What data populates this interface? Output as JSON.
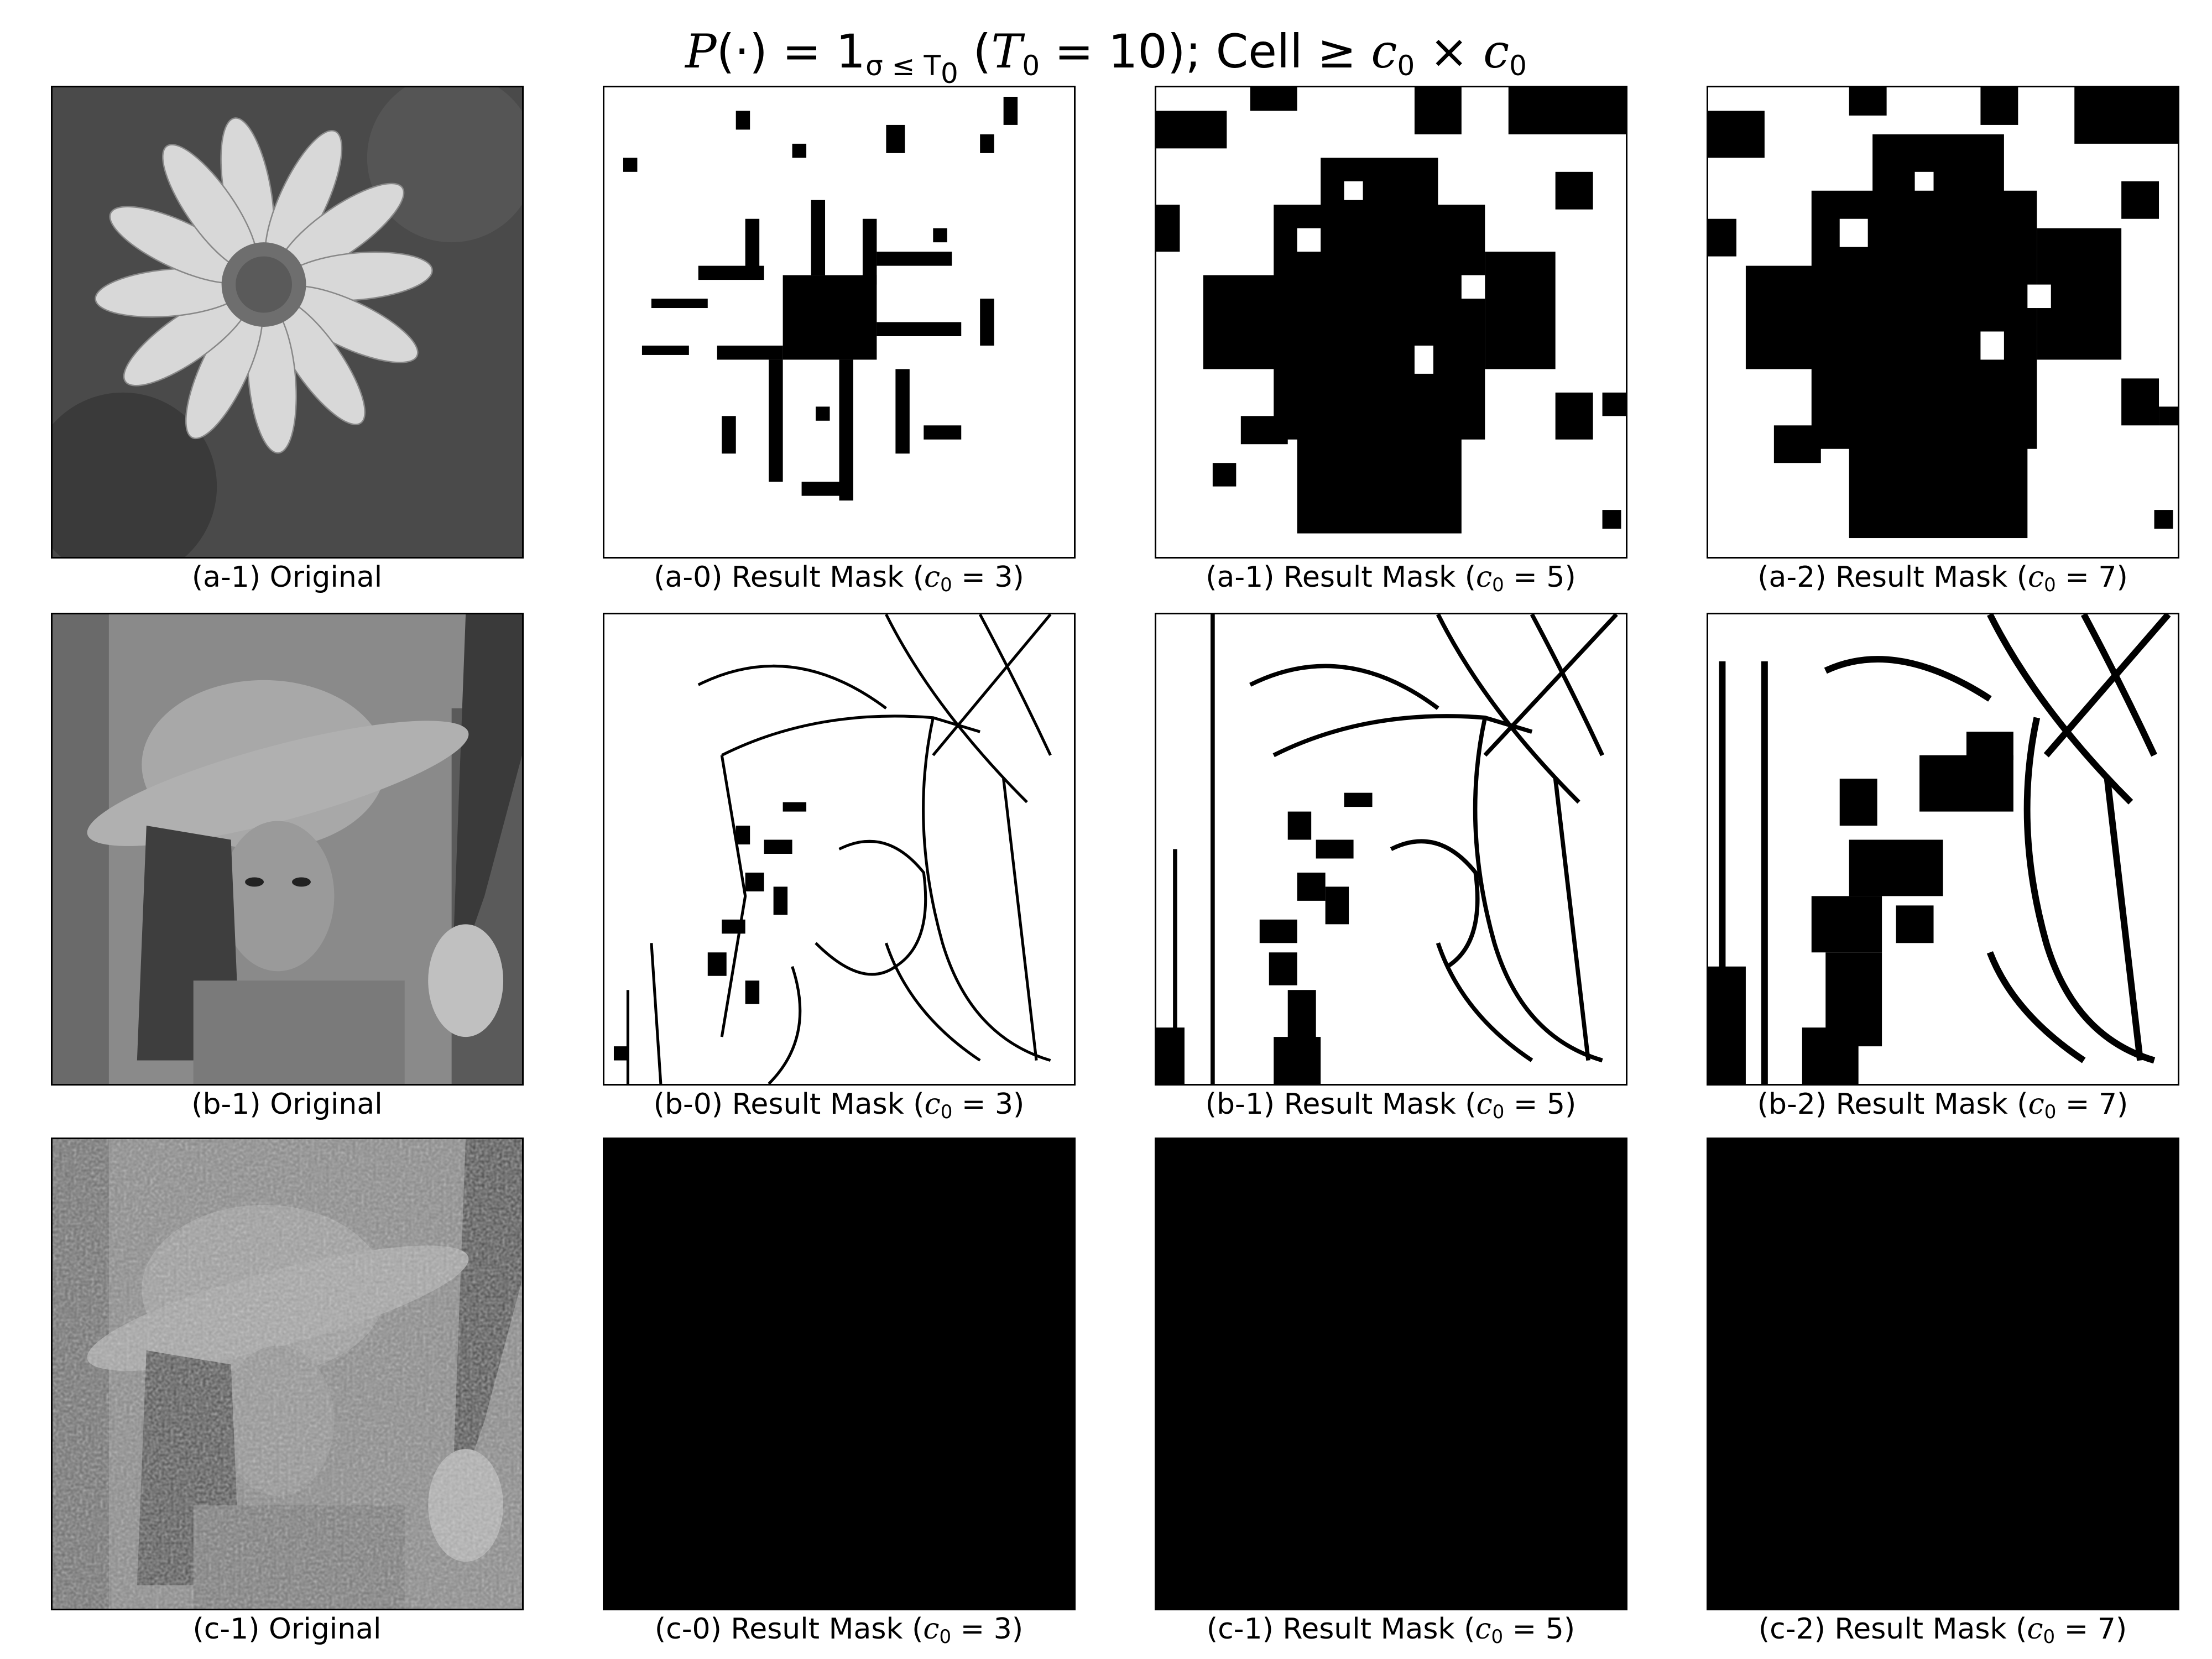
{
  "figure": {
    "title": {
      "p": "P",
      "args": "(·) = 1",
      "sub": "σ ≤ T",
      "sub2": "0",
      "paren_open": " (",
      "t": "T",
      "t_sub": "0",
      "eq_val": " = 10); Cell ≥ ",
      "c1": "c",
      "c1_sub": "0",
      "times": " × ",
      "c2": "c",
      "c2_sub": "0"
    },
    "rows": [
      {
        "original_caption": "(a-1) Original",
        "mask_captions": [
          {
            "prefix": "(a-0) Result Mask (",
            "var": "c",
            "sub": "0",
            "suffix": " = 3)"
          },
          {
            "prefix": "(a-1) Result Mask (",
            "var": "c",
            "sub": "0",
            "suffix": " = 5)"
          },
          {
            "prefix": "(a-2) Result Mask (",
            "var": "c",
            "sub": "0",
            "suffix": " = 7)"
          }
        ]
      },
      {
        "original_caption": "(b-1) Original",
        "mask_captions": [
          {
            "prefix": "(b-0) Result Mask (",
            "var": "c",
            "sub": "0",
            "suffix": " = 3)"
          },
          {
            "prefix": "(b-1) Result Mask (",
            "var": "c",
            "sub": "0",
            "suffix": " = 5)"
          },
          {
            "prefix": "(b-2) Result Mask (",
            "var": "c",
            "sub": "0",
            "suffix": " = 7)"
          }
        ]
      },
      {
        "original_caption": "(c-1) Original",
        "mask_captions": [
          {
            "prefix": "(c-0) Result Mask (",
            "var": "c",
            "sub": "0",
            "suffix": " = 3)"
          },
          {
            "prefix": "(c-1) Result Mask (",
            "var": "c",
            "sub": "0",
            "suffix": " = 5)"
          },
          {
            "prefix": "(c-2) Result Mask (",
            "var": "c",
            "sub": "0",
            "suffix": " = 7)"
          }
        ]
      }
    ]
  }
}
